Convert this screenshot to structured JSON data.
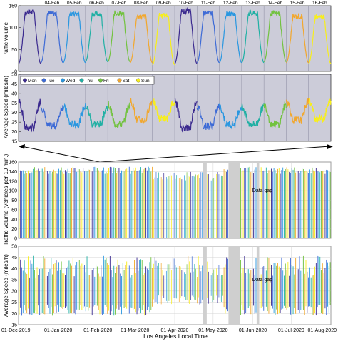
{
  "colors": {
    "Mon": "#3b2a8f",
    "Tue": "#3e6bd6",
    "Wed": "#2a97e0",
    "Thu": "#21b0a4",
    "Fri": "#72c23f",
    "Sat": "#f2a72c",
    "Sun": "#f7ee1c",
    "panel_top_bg": "#ccccd9",
    "gap_fill": "#cfcfcf"
  },
  "chart_data": [
    {
      "type": "line",
      "panel": "top-traffic-volume",
      "xlabel": "",
      "ylabel": "Traffic volume",
      "ylim": [
        0,
        150
      ],
      "yticks": [
        "0",
        "50",
        "100",
        "150"
      ],
      "x_ticks": [
        "04-Feb",
        "05-Feb",
        "06-Feb",
        "07-Feb",
        "08-Feb",
        "09-Feb",
        "10-Feb",
        "11-Feb",
        "12-Feb",
        "13-Feb",
        "14-Feb",
        "15-Feb",
        "16-Feb"
      ],
      "days": [
        "Mon",
        "Tue",
        "Wed",
        "Thu",
        "Fri",
        "Sat",
        "Sun",
        "Mon",
        "Tue",
        "Wed",
        "Thu",
        "Fri",
        "Sat",
        "Sun"
      ],
      "daily_peak": [
        135,
        132,
        132,
        131,
        133,
        125,
        128,
        138,
        133,
        131,
        132,
        132,
        125,
        125
      ],
      "daily_min": [
        18,
        20,
        20,
        22,
        22,
        20,
        15,
        18,
        20,
        20,
        20,
        22,
        20,
        18
      ]
    },
    {
      "type": "line",
      "panel": "top-average-speed",
      "xlabel": "",
      "ylabel": "Average Speed (miles/h)",
      "ylim": [
        15,
        50
      ],
      "yticks": [
        "15",
        "20",
        "25",
        "30",
        "35",
        "40",
        "45",
        "50"
      ],
      "series": [
        {
          "name": "Mon"
        },
        {
          "name": "Tue"
        },
        {
          "name": "Wed"
        },
        {
          "name": "Thu"
        },
        {
          "name": "Fri"
        },
        {
          "name": "Sat"
        },
        {
          "name": "Sun"
        }
      ],
      "legend_position": "top-left",
      "daily_high": [
        36,
        33,
        33,
        33,
        34,
        36,
        36,
        36,
        33,
        33,
        33,
        34,
        36,
        36
      ],
      "daily_low": [
        22,
        23,
        24,
        24,
        24,
        26,
        27,
        22,
        23,
        24,
        24,
        24,
        26,
        27
      ]
    },
    {
      "type": "bar",
      "panel": "bottom-traffic-volume",
      "xlabel": "",
      "ylabel": "Traffic volume (vehicles per 10 min.)",
      "ylim": [
        0,
        160
      ],
      "yticks": [
        "0",
        "20",
        "40",
        "60",
        "80",
        "100",
        "120",
        "140",
        "160"
      ],
      "annotations": [
        "Data gap"
      ]
    },
    {
      "type": "bar",
      "panel": "bottom-average-speed",
      "xlabel": "Los Angeles Local Time",
      "ylabel": "Average Speed (miles/h)",
      "ylim": [
        15,
        50
      ],
      "yticks": [
        "15",
        "20",
        "25",
        "30",
        "35",
        "40",
        "45",
        "50"
      ],
      "x_ticks": [
        "01-Dec-2019",
        "01-Jan-2020",
        "01-Feb-2020",
        "01-Mar-2020",
        "01-Apr-2020",
        "01-May-2020",
        "01-Jun-2020",
        "01-Jul-2020",
        "01-Aug-2020"
      ],
      "x_range_days": [
        0,
        244
      ],
      "data_gaps_days": [
        [
          144,
          147
        ],
        [
          164,
          173
        ],
        [
          186,
          188
        ]
      ],
      "annotations": [
        "Data gap"
      ]
    }
  ]
}
